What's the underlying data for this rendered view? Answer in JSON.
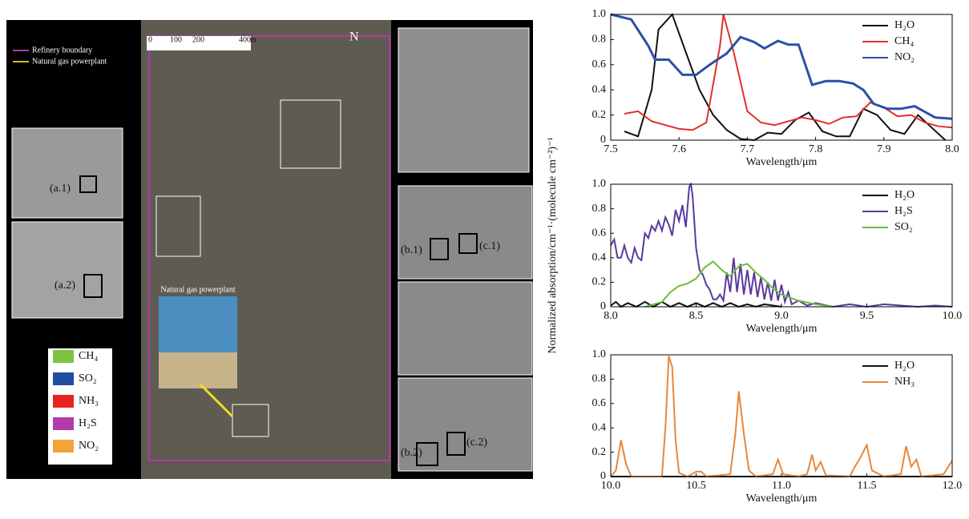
{
  "chart_data": [
    {
      "type": "line",
      "xlabel": "Wavelength/μm",
      "legend": "upper right",
      "xlim": [
        7.5,
        8
      ],
      "ylim": [
        0,
        1
      ],
      "xticks": [
        7.5,
        7.6,
        7.7,
        7.8,
        7.9,
        {
          "value": 8,
          "label": "8.0"
        }
      ],
      "yticks": [
        0,
        0.2,
        0.4,
        0.6,
        0.8,
        {
          "value": 1,
          "label": "1.0"
        }
      ],
      "series": [
        {
          "name": "H₂O",
          "color": "#111111",
          "x": [
            7.52,
            7.54,
            7.56,
            7.57,
            7.59,
            7.61,
            7.63,
            7.65,
            7.67,
            7.69,
            7.71,
            7.73,
            7.75,
            7.77,
            7.79,
            7.81,
            7.83,
            7.85,
            7.87,
            7.89,
            7.91,
            7.93,
            7.95,
            7.97,
            7.99
          ],
          "values": [
            0.07,
            0.03,
            0.4,
            0.88,
            1.0,
            0.7,
            0.4,
            0.2,
            0.08,
            0.01,
            0.0,
            0.06,
            0.05,
            0.16,
            0.22,
            0.07,
            0.03,
            0.03,
            0.25,
            0.2,
            0.08,
            0.05,
            0.2,
            0.1,
            0.0
          ]
        },
        {
          "name": "CH₄",
          "color": "#e0302a",
          "x": [
            7.52,
            7.54,
            7.56,
            7.58,
            7.6,
            7.62,
            7.64,
            7.66,
            7.665,
            7.68,
            7.7,
            7.72,
            7.74,
            7.76,
            7.78,
            7.8,
            7.82,
            7.84,
            7.86,
            7.88,
            7.9,
            7.92,
            7.94,
            7.96,
            7.98,
            8.0
          ],
          "values": [
            0.21,
            0.23,
            0.15,
            0.12,
            0.09,
            0.08,
            0.14,
            0.75,
            1.0,
            0.7,
            0.23,
            0.14,
            0.12,
            0.15,
            0.18,
            0.16,
            0.13,
            0.18,
            0.19,
            0.3,
            0.26,
            0.19,
            0.2,
            0.14,
            0.11,
            0.1
          ]
        },
        {
          "name": "NO₂",
          "color": "#2b50a8",
          "x": [
            7.5,
            7.53,
            7.555,
            7.565,
            7.585,
            7.605,
            7.625,
            7.645,
            7.67,
            7.69,
            7.71,
            7.725,
            7.745,
            7.76,
            7.775,
            7.795,
            7.815,
            7.835,
            7.855,
            7.87,
            7.885,
            7.905,
            7.925,
            7.945,
            7.975,
            8.0
          ],
          "values": [
            1.0,
            0.96,
            0.75,
            0.64,
            0.64,
            0.52,
            0.52,
            0.6,
            0.69,
            0.82,
            0.78,
            0.73,
            0.79,
            0.76,
            0.76,
            0.44,
            0.47,
            0.47,
            0.45,
            0.4,
            0.29,
            0.25,
            0.25,
            0.27,
            0.18,
            0.17
          ]
        }
      ]
    },
    {
      "type": "line",
      "xlabel": "Wavelength/μm",
      "ylabel": "Normalized absorption/cm⁻¹·(molecule cm⁻²)⁻¹",
      "legend": "upper right",
      "xlim": [
        8,
        10
      ],
      "ylim": [
        0,
        1
      ],
      "xticks": [
        {
          "value": 8,
          "label": "8.0"
        },
        8.5,
        {
          "value": 9,
          "label": "9.0"
        },
        9.5,
        {
          "value": 10,
          "label": "10.0"
        }
      ],
      "yticks": [
        0,
        0.2,
        0.4,
        0.6,
        0.8,
        {
          "value": 1,
          "label": "1.0"
        }
      ],
      "series": [
        {
          "name": "H₂O",
          "color": "#111111",
          "x": [
            8.0,
            8.03,
            8.06,
            8.1,
            8.15,
            8.2,
            8.25,
            8.3,
            8.35,
            8.4,
            8.45,
            8.5,
            8.55,
            8.6,
            8.65,
            8.7,
            8.75,
            8.8,
            8.85,
            8.9,
            9.0
          ],
          "values": [
            0.01,
            0.04,
            0.0,
            0.03,
            0.0,
            0.04,
            0.0,
            0.04,
            0.0,
            0.03,
            0.0,
            0.03,
            0.0,
            0.03,
            0.0,
            0.03,
            0.0,
            0.02,
            0.0,
            0.02,
            0.0
          ]
        },
        {
          "name": "H₂S",
          "color": "#5a3a9e",
          "x": [
            8.0,
            8.02,
            8.04,
            8.06,
            8.08,
            8.1,
            8.12,
            8.14,
            8.16,
            8.18,
            8.2,
            8.22,
            8.24,
            8.26,
            8.28,
            8.3,
            8.32,
            8.34,
            8.36,
            8.38,
            8.4,
            8.42,
            8.44,
            8.46,
            8.47,
            8.48,
            8.5,
            8.52,
            8.54,
            8.56,
            8.58,
            8.6,
            8.62,
            8.64,
            8.66,
            8.68,
            8.7,
            8.72,
            8.74,
            8.76,
            8.78,
            8.8,
            8.82,
            8.84,
            8.86,
            8.88,
            8.9,
            8.92,
            8.94,
            8.96,
            8.98,
            9.0,
            9.02,
            9.04,
            9.06,
            9.1,
            9.15,
            9.2,
            9.3,
            9.4,
            9.5,
            9.6,
            9.7,
            9.8,
            9.9,
            10.0
          ],
          "values": [
            0.5,
            0.55,
            0.4,
            0.4,
            0.5,
            0.4,
            0.36,
            0.48,
            0.4,
            0.38,
            0.6,
            0.56,
            0.66,
            0.62,
            0.7,
            0.62,
            0.73,
            0.67,
            0.58,
            0.79,
            0.7,
            0.83,
            0.65,
            0.98,
            1.0,
            0.9,
            0.48,
            0.3,
            0.26,
            0.18,
            0.14,
            0.06,
            0.06,
            0.1,
            0.05,
            0.28,
            0.12,
            0.4,
            0.12,
            0.35,
            0.1,
            0.3,
            0.1,
            0.28,
            0.08,
            0.24,
            0.06,
            0.2,
            0.05,
            0.22,
            0.05,
            0.18,
            0.04,
            0.12,
            0.02,
            0.05,
            0.01,
            0.03,
            0.0,
            0.02,
            0.0,
            0.02,
            0.01,
            0.0,
            0.01,
            0.0
          ]
        },
        {
          "name": "SO₂",
          "color": "#6cbf3a",
          "x": [
            8.2,
            8.3,
            8.35,
            8.4,
            8.45,
            8.5,
            8.55,
            8.6,
            8.65,
            8.7,
            8.75,
            8.8,
            8.85,
            8.9,
            8.95,
            9.0,
            9.1,
            9.2,
            9.3
          ],
          "values": [
            0.0,
            0.04,
            0.12,
            0.17,
            0.19,
            0.23,
            0.32,
            0.37,
            0.3,
            0.25,
            0.33,
            0.35,
            0.28,
            0.22,
            0.15,
            0.1,
            0.05,
            0.02,
            0.0
          ]
        }
      ]
    },
    {
      "type": "line",
      "xlabel": "Wavelength/μm",
      "legend": "upper right",
      "xlim": [
        10,
        12
      ],
      "ylim": [
        0,
        1
      ],
      "xticks": [
        {
          "value": 10,
          "label": "10.0"
        },
        10.5,
        {
          "value": 11,
          "label": "11.0"
        },
        11.5,
        {
          "value": 12,
          "label": "12.0"
        }
      ],
      "yticks": [
        0,
        0.2,
        0.4,
        0.6,
        0.8,
        {
          "value": 1,
          "label": "1.0"
        }
      ],
      "series": [
        {
          "name": "H₂O",
          "color": "#111111",
          "x": [
            10,
            12
          ],
          "values": [
            0,
            0
          ]
        },
        {
          "name": "NH₃",
          "color": "#e8873a",
          "x": [
            10.0,
            10.03,
            10.06,
            10.09,
            10.12,
            10.3,
            10.32,
            10.34,
            10.36,
            10.38,
            10.4,
            10.45,
            10.5,
            10.53,
            10.56,
            10.7,
            10.73,
            10.75,
            10.78,
            10.81,
            10.85,
            10.95,
            10.98,
            11.01,
            11.1,
            11.15,
            11.18,
            11.2,
            11.23,
            11.26,
            11.4,
            11.43,
            11.46,
            11.5,
            11.53,
            11.6,
            11.7,
            11.73,
            11.76,
            11.79,
            11.82,
            11.95,
            12.0
          ],
          "values": [
            0.0,
            0.05,
            0.3,
            0.1,
            0.0,
            0.0,
            0.4,
            0.99,
            0.9,
            0.3,
            0.03,
            0.0,
            0.04,
            0.04,
            0.0,
            0.02,
            0.35,
            0.7,
            0.35,
            0.05,
            0.0,
            0.02,
            0.14,
            0.02,
            0.0,
            0.02,
            0.18,
            0.05,
            0.12,
            0.01,
            0.0,
            0.08,
            0.15,
            0.26,
            0.05,
            0.0,
            0.02,
            0.25,
            0.08,
            0.14,
            0.0,
            0.02,
            0.13
          ]
        }
      ]
    }
  ],
  "image_panel": {
    "boundary_legend": [
      "Refinery boundary",
      "Natural gas powerplant"
    ],
    "scale_bar": [
      "0",
      "100",
      "200",
      "400",
      "m"
    ],
    "north": "N",
    "inset_labels": [
      "(a.1)",
      "(a.2)",
      "(b.1)",
      "(c.1)",
      "(b.2)",
      "(c.2)"
    ],
    "photo_caption": "Natural gas powerplant",
    "gas_legend": [
      {
        "name": "CH₄",
        "color": "#7dc242"
      },
      {
        "name": "SO₂",
        "color": "#1f4ea3"
      },
      {
        "name": "NH₃",
        "color": "#e8231f"
      },
      {
        "name": "H₂S",
        "color": "#b43ca8"
      },
      {
        "name": "NO₂",
        "color": "#f2a33a"
      }
    ]
  }
}
